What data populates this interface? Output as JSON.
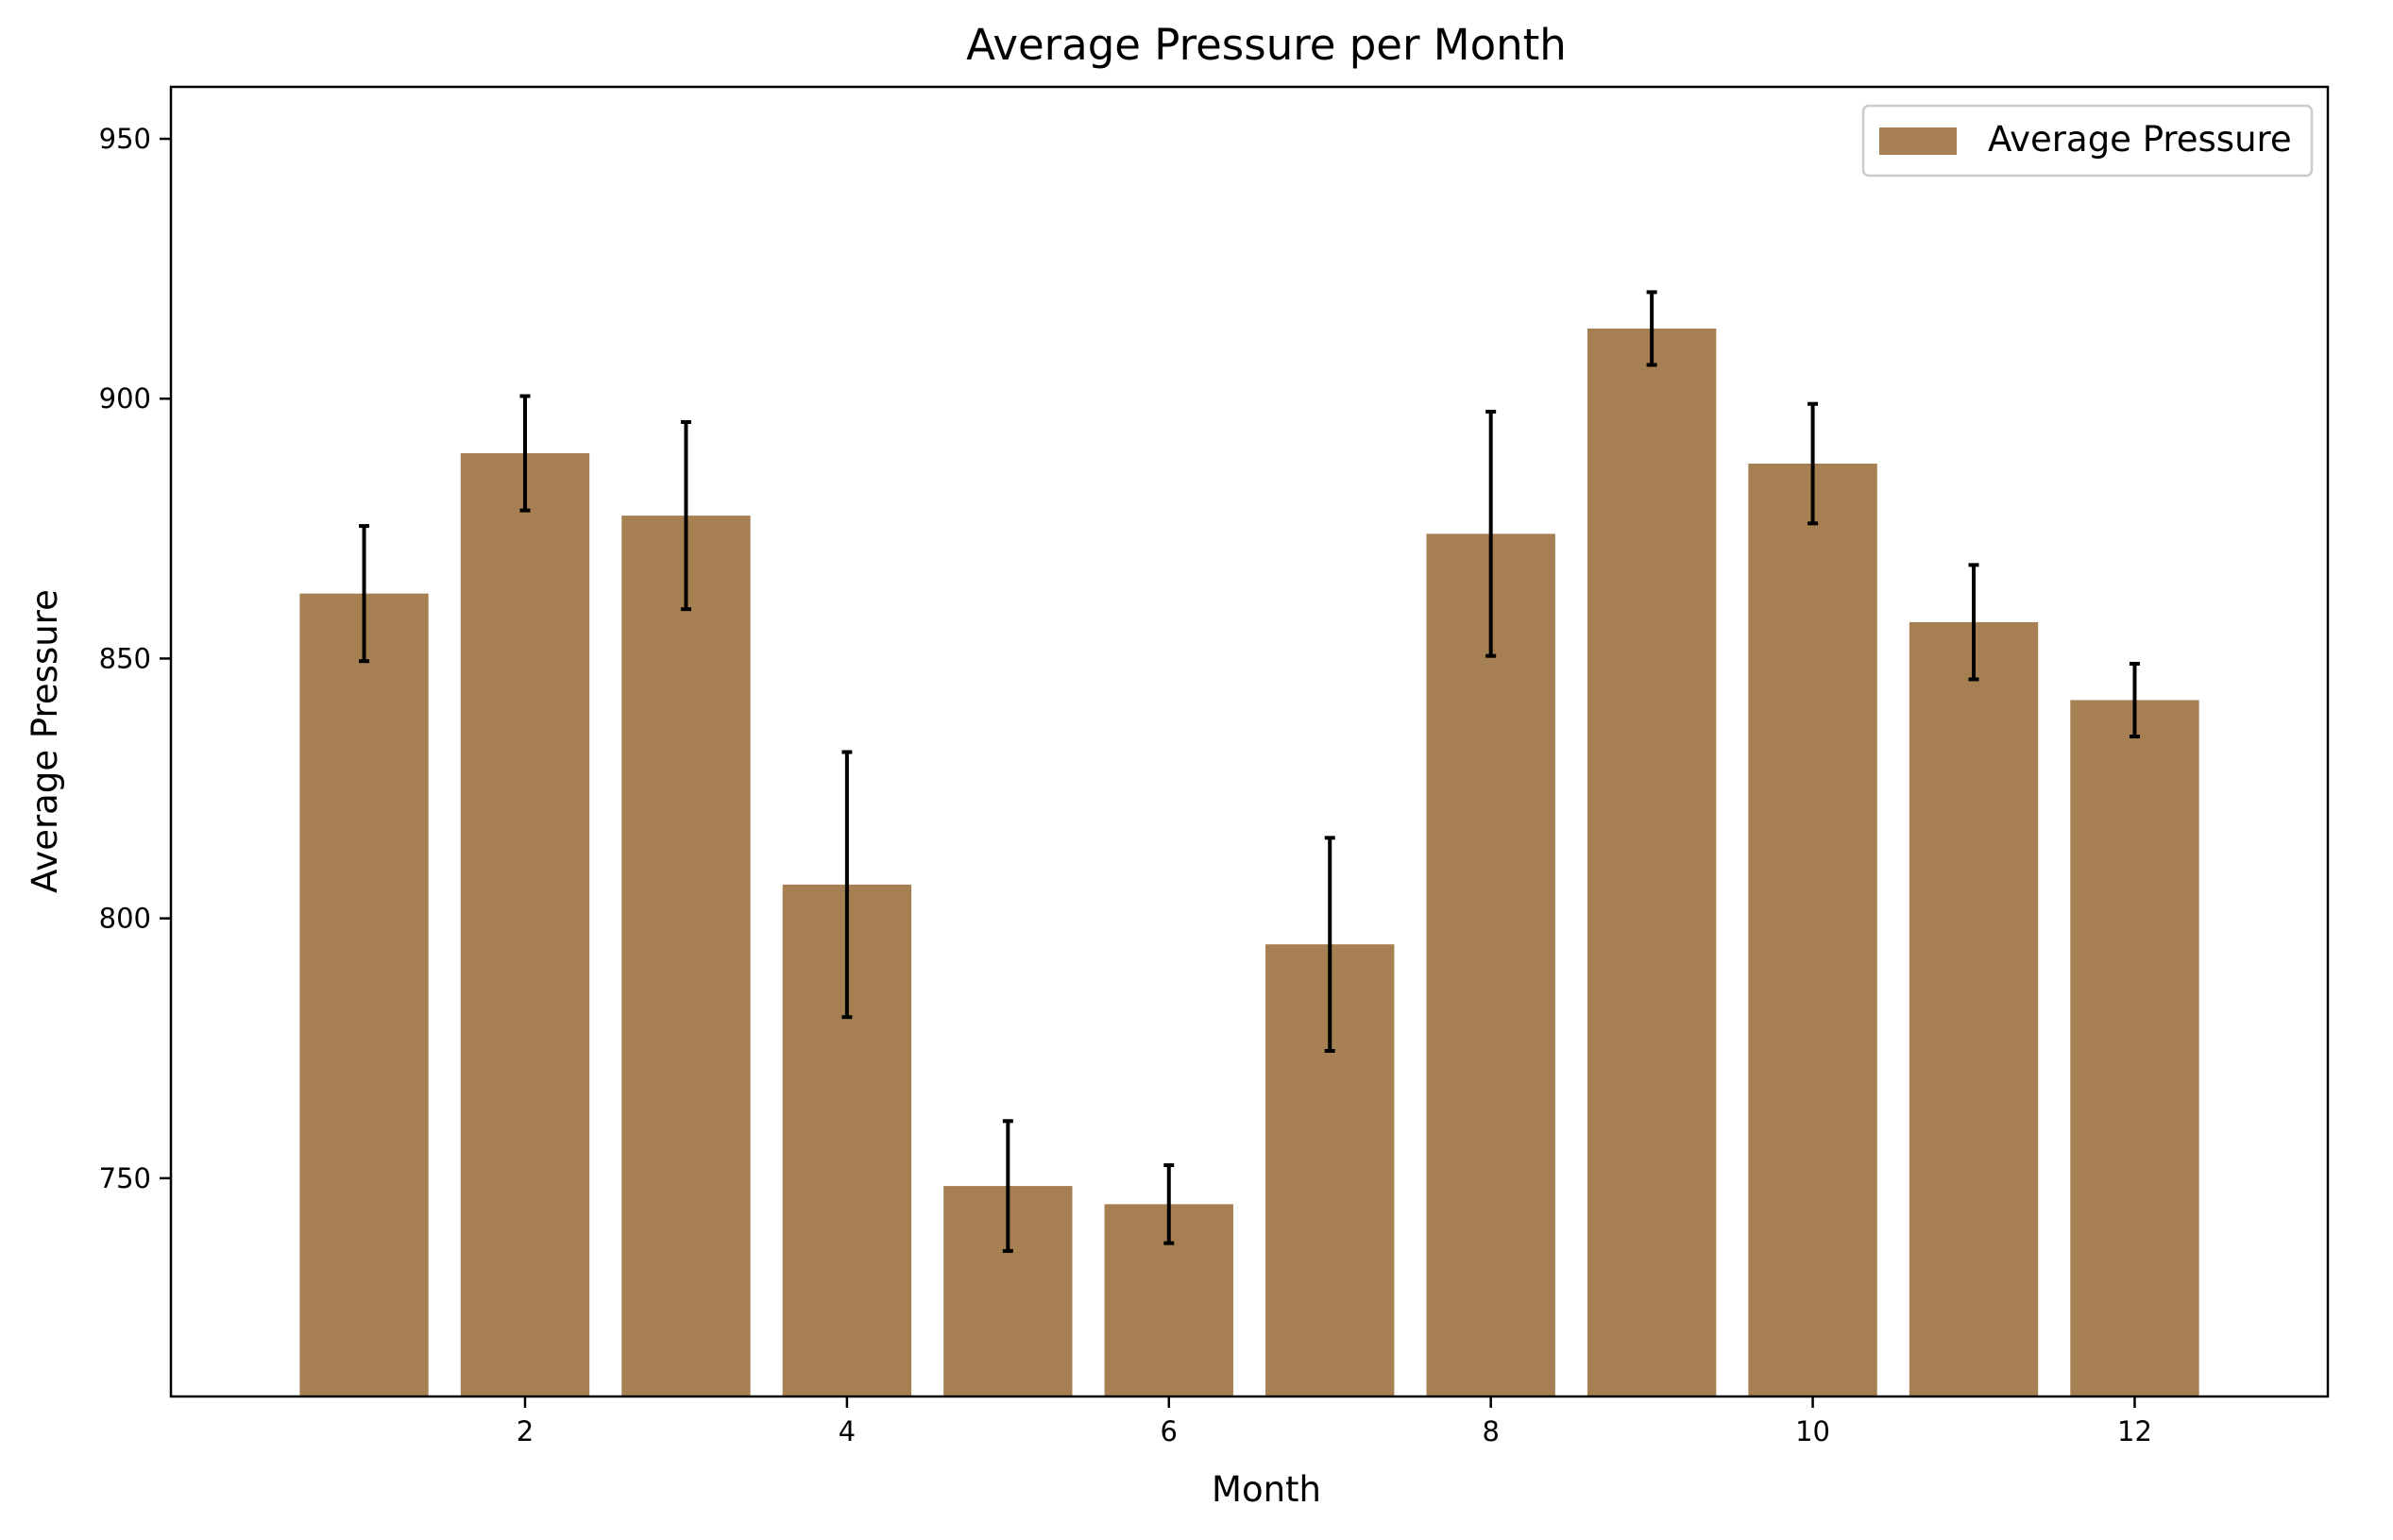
{
  "chart_data": {
    "type": "bar",
    "title": "Average Pressure per Month",
    "xlabel": "Month",
    "ylabel": "Average Pressure",
    "categories": [
      1,
      2,
      3,
      4,
      5,
      6,
      7,
      8,
      9,
      10,
      11,
      12
    ],
    "series": [
      {
        "name": "Average Pressure",
        "color": "#a67f52",
        "values": [
          862.5,
          889.5,
          877.5,
          806.5,
          748.5,
          745,
          795,
          874,
          913.5,
          887.5,
          857,
          842
        ],
        "errors": [
          13,
          11,
          18,
          25.5,
          12.5,
          7.5,
          20.5,
          23.5,
          7,
          11.5,
          11,
          7
        ]
      }
    ],
    "xlim": [
      -0.2,
      13.2
    ],
    "ylim": [
      708,
      960
    ],
    "xticks": [
      2,
      4,
      6,
      8,
      10,
      12
    ],
    "yticks": [
      750,
      800,
      850,
      900,
      950
    ],
    "legend": {
      "position": "top-right"
    },
    "grid": false,
    "error_bar_color": "#000000"
  }
}
